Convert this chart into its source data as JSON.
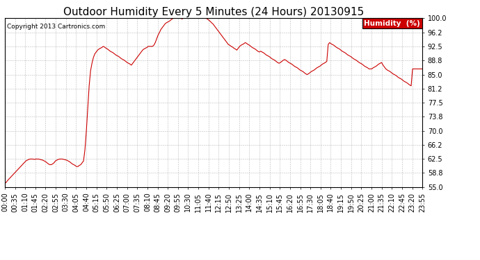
{
  "title": "Outdoor Humidity Every 5 Minutes (24 Hours) 20130915",
  "copyright": "Copyright 2013 Cartronics.com",
  "legend_label": "Humidity  (%)",
  "legend_bg": "#cc0000",
  "legend_text_color": "#ffffff",
  "line_color": "#cc0000",
  "bg_color": "#ffffff",
  "grid_color": "#bbbbbb",
  "ylim": [
    55.0,
    100.0
  ],
  "yticks": [
    55.0,
    58.8,
    62.5,
    66.2,
    70.0,
    73.8,
    77.5,
    81.2,
    85.0,
    88.8,
    92.5,
    96.2,
    100.0
  ],
  "title_fontsize": 11,
  "axis_fontsize": 7,
  "humidity_data": [
    56.0,
    56.3,
    56.8,
    57.2,
    57.6,
    58.0,
    58.4,
    58.8,
    59.2,
    59.6,
    60.0,
    60.4,
    60.8,
    61.2,
    61.6,
    62.0,
    62.2,
    62.4,
    62.5,
    62.5,
    62.5,
    62.4,
    62.5,
    62.5,
    62.5,
    62.4,
    62.3,
    62.2,
    62.0,
    61.8,
    61.5,
    61.2,
    61.0,
    61.0,
    61.2,
    61.5,
    62.0,
    62.2,
    62.4,
    62.5,
    62.5,
    62.5,
    62.4,
    62.3,
    62.2,
    62.0,
    61.8,
    61.5,
    61.2,
    61.0,
    60.8,
    60.5,
    60.5,
    60.8,
    61.0,
    61.5,
    62.0,
    65.0,
    70.0,
    76.0,
    82.0,
    86.0,
    88.0,
    89.5,
    90.5,
    91.0,
    91.5,
    91.8,
    92.0,
    92.2,
    92.5,
    92.3,
    92.0,
    91.8,
    91.5,
    91.2,
    91.0,
    90.8,
    90.5,
    90.2,
    90.0,
    89.8,
    89.5,
    89.2,
    89.0,
    88.8,
    88.5,
    88.2,
    88.0,
    87.8,
    87.5,
    88.0,
    88.5,
    89.0,
    89.5,
    90.0,
    90.5,
    91.0,
    91.5,
    91.8,
    92.0,
    92.2,
    92.5,
    92.5,
    92.5,
    92.5,
    92.8,
    93.5,
    94.5,
    95.5,
    96.2,
    97.0,
    97.5,
    98.0,
    98.5,
    98.8,
    99.0,
    99.2,
    99.5,
    99.8,
    100.0,
    100.0,
    100.0,
    100.0,
    100.0,
    100.0,
    99.8,
    100.0,
    100.0,
    100.0,
    100.0,
    100.0,
    100.0,
    100.0,
    100.0,
    100.0,
    100.0,
    100.0,
    100.0,
    100.0,
    100.0,
    100.0,
    100.0,
    100.0,
    99.8,
    99.5,
    99.2,
    98.8,
    98.5,
    98.0,
    97.5,
    97.0,
    96.5,
    96.0,
    95.5,
    95.0,
    94.5,
    94.0,
    93.5,
    93.0,
    92.8,
    92.5,
    92.3,
    92.0,
    91.8,
    91.5,
    92.0,
    92.5,
    92.8,
    93.0,
    93.2,
    93.5,
    93.3,
    93.0,
    92.8,
    92.5,
    92.2,
    92.0,
    91.8,
    91.5,
    91.2,
    91.0,
    91.2,
    91.0,
    90.8,
    90.5,
    90.2,
    90.0,
    89.8,
    89.5,
    89.2,
    89.0,
    88.8,
    88.5,
    88.2,
    88.0,
    88.2,
    88.5,
    88.8,
    89.0,
    88.8,
    88.5,
    88.2,
    88.0,
    87.8,
    87.5,
    87.2,
    87.0,
    86.8,
    86.5,
    86.2,
    86.0,
    85.8,
    85.5,
    85.2,
    85.0,
    85.2,
    85.5,
    85.8,
    86.0,
    86.2,
    86.5,
    86.8,
    87.0,
    87.2,
    87.5,
    87.8,
    88.0,
    88.2,
    88.5,
    93.0,
    93.5,
    93.2,
    93.0,
    92.8,
    92.5,
    92.2,
    92.0,
    91.8,
    91.5,
    91.2,
    91.0,
    90.8,
    90.5,
    90.2,
    90.0,
    89.8,
    89.5,
    89.2,
    89.0,
    88.8,
    88.5,
    88.2,
    88.0,
    87.8,
    87.5,
    87.2,
    87.0,
    86.8,
    86.5,
    86.5,
    86.5,
    86.8,
    87.0,
    87.2,
    87.5,
    87.8,
    88.0,
    88.2,
    87.5,
    87.0,
    86.5,
    86.2,
    86.0,
    85.8,
    85.5,
    85.2,
    85.0,
    84.8,
    84.5,
    84.2,
    84.0,
    83.8,
    83.5,
    83.2,
    83.0,
    82.8,
    82.5,
    82.2,
    82.0,
    86.5,
    86.5,
    86.5,
    86.5,
    86.5,
    86.5,
    86.5,
    86.5
  ],
  "xtick_labels": [
    "00:00",
    "00:35",
    "01:10",
    "01:45",
    "02:20",
    "02:55",
    "03:30",
    "04:05",
    "04:40",
    "05:15",
    "05:50",
    "06:25",
    "07:00",
    "07:35",
    "08:10",
    "08:45",
    "09:20",
    "09:55",
    "10:30",
    "11:05",
    "11:40",
    "12:15",
    "12:50",
    "13:25",
    "14:00",
    "14:35",
    "15:10",
    "15:45",
    "16:20",
    "16:55",
    "17:30",
    "18:05",
    "18:40",
    "19:15",
    "19:50",
    "20:25",
    "21:00",
    "21:35",
    "22:10",
    "22:45",
    "23:20",
    "23:55"
  ]
}
